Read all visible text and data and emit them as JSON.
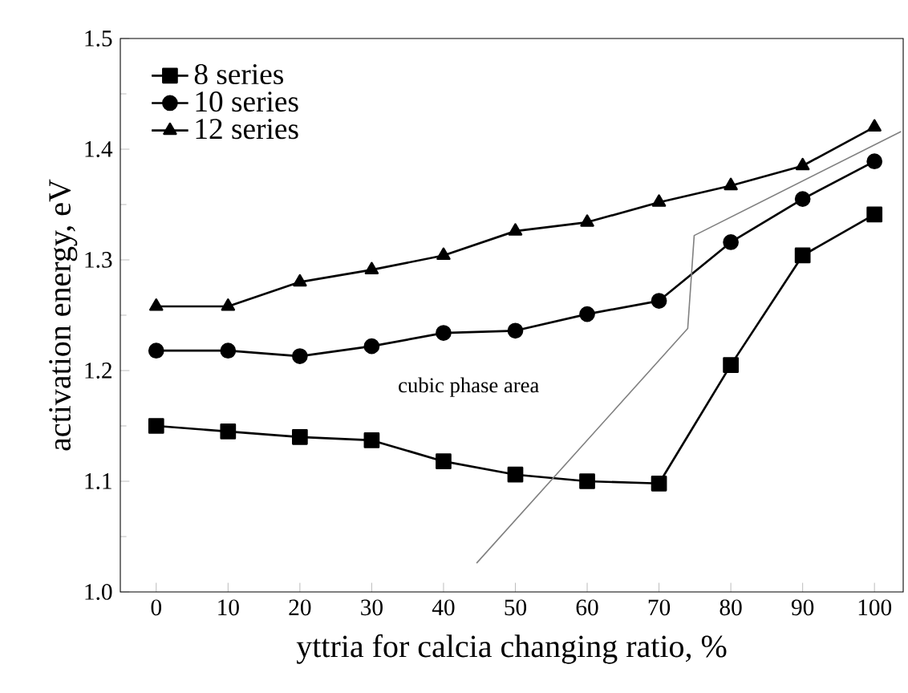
{
  "chart_data": {
    "type": "line",
    "xlabel": "yttria for calcia changing ratio, %",
    "ylabel": "activation energy, eV",
    "x": [
      0,
      10,
      20,
      30,
      40,
      50,
      60,
      70,
      80,
      90,
      100
    ],
    "series": [
      {
        "name": "8 series",
        "color": "#000000",
        "marker": "square",
        "values": [
          1.15,
          1.145,
          1.14,
          1.137,
          1.118,
          1.106,
          1.1,
          1.098,
          1.205,
          1.304,
          1.341
        ]
      },
      {
        "name": "10 series",
        "color": "#000000",
        "marker": "circle",
        "values": [
          1.218,
          1.218,
          1.213,
          1.222,
          1.234,
          1.236,
          1.251,
          1.263,
          1.316,
          1.355,
          1.389
        ]
      },
      {
        "name": "12 series",
        "color": "#000000",
        "marker": "triangle",
        "values": [
          1.258,
          1.258,
          1.28,
          1.291,
          1.304,
          1.326,
          1.334,
          1.352,
          1.367,
          1.385,
          1.42
        ]
      },
      {
        "color": "#808080",
        "marker": "none",
        "x": [
          44.6,
          74.0,
          74.9,
          103.7
        ],
        "values": [
          1.026,
          1.238,
          1.322,
          1.416
        ]
      }
    ],
    "annotations": [
      "cubic phase area"
    ],
    "xlim": [
      -5,
      104
    ],
    "ylim": [
      1.0,
      1.5
    ],
    "xticks": [
      0,
      10,
      20,
      30,
      40,
      50,
      60,
      70,
      80,
      90,
      100
    ],
    "yticks": [
      {
        "value": 1.0,
        "label": "1.0"
      },
      {
        "value": 1.1,
        "label": "1.1"
      },
      {
        "value": 1.2,
        "label": "1.2"
      },
      {
        "value": 1.3,
        "label": "1.3"
      },
      {
        "value": 1.4,
        "label": "1.4"
      },
      {
        "value": 1.5,
        "label": "1.5"
      }
    ],
    "grid": false,
    "legend": "top left"
  }
}
